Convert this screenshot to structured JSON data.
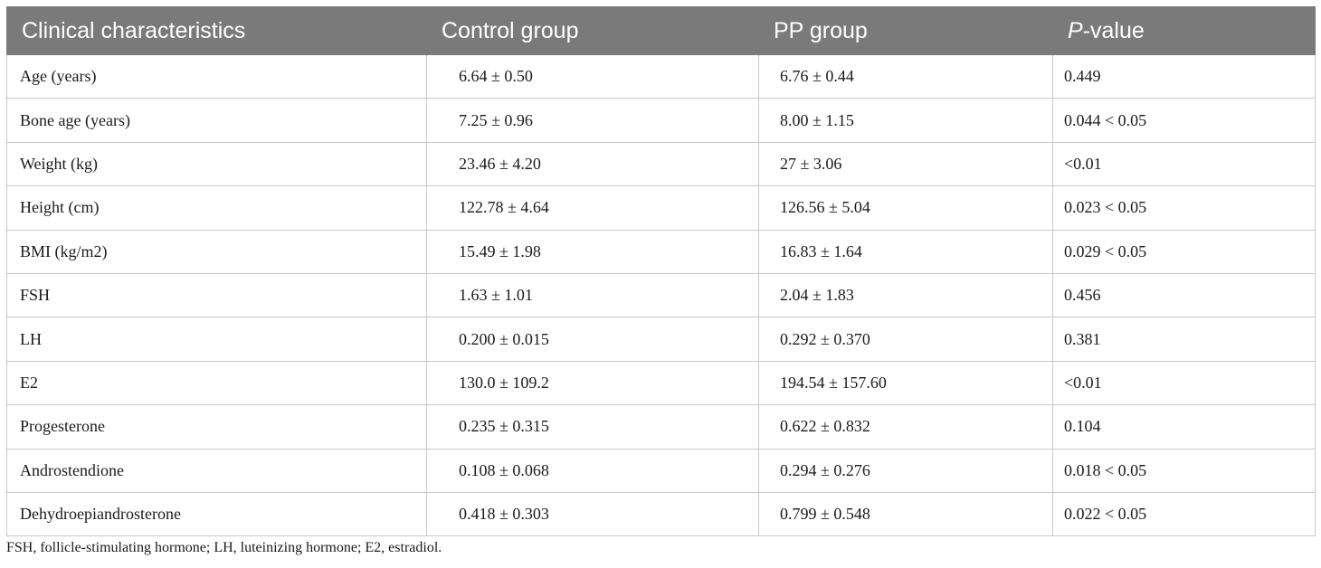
{
  "table": {
    "headers": {
      "characteristic": "Clinical characteristics",
      "control": "Control group",
      "pp": "PP group",
      "pvalue_italic": "P",
      "pvalue_rest": "-value"
    },
    "rows": [
      {
        "label": "Age (years)",
        "control": "6.64 ± 0.50",
        "pp": "6.76 ± 0.44",
        "p": "0.449"
      },
      {
        "label": "Bone age (years)",
        "control": "7.25 ± 0.96",
        "pp": "8.00 ± 1.15",
        "p": "0.044 < 0.05"
      },
      {
        "label": "Weight (kg)",
        "control": "23.46 ± 4.20",
        "pp": "27 ± 3.06",
        "p": "<0.01"
      },
      {
        "label": "Height (cm)",
        "control": "122.78 ± 4.64",
        "pp": "126.56 ± 5.04",
        "p": "0.023 < 0.05"
      },
      {
        "label": "BMI (kg/m2)",
        "control": "15.49 ± 1.98",
        "pp": "16.83 ± 1.64",
        "p": "0.029 < 0.05"
      },
      {
        "label": "FSH",
        "control": "1.63 ± 1.01",
        "pp": "2.04 ± 1.83",
        "p": "0.456"
      },
      {
        "label": "LH",
        "control": "0.200 ± 0.015",
        "pp": "0.292 ± 0.370",
        "p": "0.381"
      },
      {
        "label": "E2",
        "control": "130.0 ± 109.2",
        "pp": "194.54 ± 157.60",
        "p": "<0.01"
      },
      {
        "label": "Progesterone",
        "control": "0.235 ± 0.315",
        "pp": "0.622 ± 0.832",
        "p": "0.104"
      },
      {
        "label": "Androstendione",
        "control": "0.108 ± 0.068",
        "pp": "0.294 ± 0.276",
        "p": "0.018 < 0.05"
      },
      {
        "label": "Dehydroepiandrosterone",
        "control": "0.418 ± 0.303",
        "pp": "0.799 ± 0.548",
        "p": "0.022 < 0.05"
      }
    ]
  },
  "footnote": "FSH, follicle-stimulating hormone; LH, luteinizing hormone; E2, estradiol.",
  "colors": {
    "header_bg": "#7a7a7a",
    "header_text": "#ffffff",
    "border": "#c8c8c8"
  }
}
